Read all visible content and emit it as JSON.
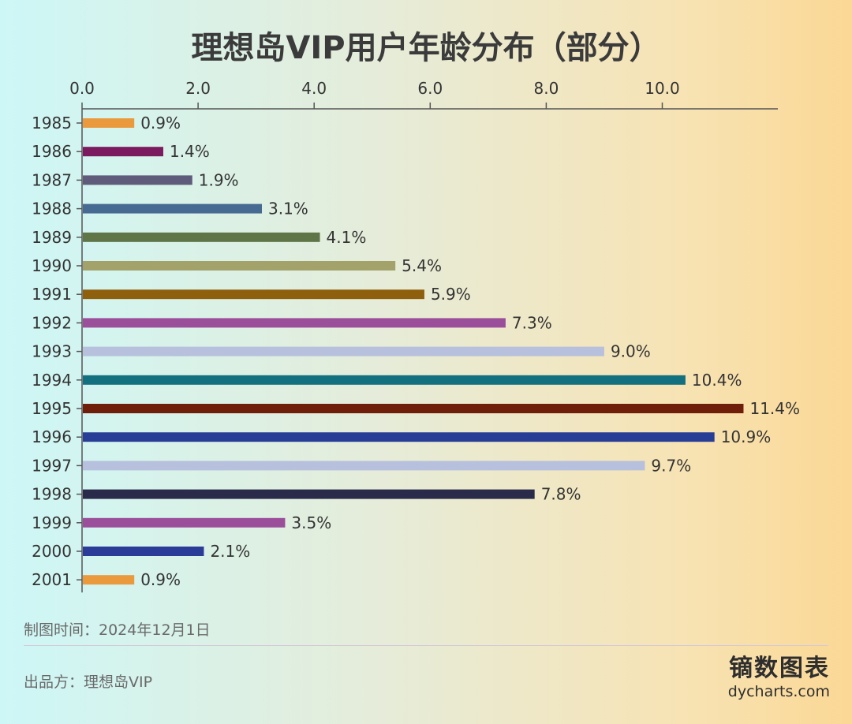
{
  "title": "理想岛VIP用户年龄分布（部分）",
  "chart_data": {
    "type": "bar",
    "orientation": "horizontal",
    "title": "理想岛VIP用户年龄分布（部分）",
    "xlabel": "",
    "ylabel": "",
    "xlim": [
      0,
      12
    ],
    "xticks": [
      0,
      2,
      4,
      6,
      8,
      10
    ],
    "xtick_labels": [
      "0.0",
      "2.0",
      "4.0",
      "6.0",
      "8.0",
      "10.0"
    ],
    "x_axis_position": "top",
    "grid": false,
    "categories": [
      "1985",
      "1986",
      "1987",
      "1988",
      "1989",
      "1990",
      "1991",
      "1992",
      "1993",
      "1994",
      "1995",
      "1996",
      "1997",
      "1998",
      "1999",
      "2000",
      "2001"
    ],
    "values": [
      0.9,
      1.4,
      1.9,
      3.1,
      4.1,
      5.4,
      5.9,
      7.3,
      9.0,
      10.4,
      11.4,
      10.9,
      9.7,
      7.8,
      3.5,
      2.1,
      0.9
    ],
    "value_labels": [
      "0.9%",
      "1.4%",
      "1.9%",
      "3.1%",
      "4.1%",
      "5.4%",
      "5.9%",
      "7.3%",
      "9.0%",
      "10.4%",
      "11.4%",
      "10.9%",
      "9.7%",
      "7.8%",
      "3.5%",
      "2.1%",
      "0.9%"
    ],
    "colors": [
      "#ea9a3c",
      "#7b1a5e",
      "#5f5b7a",
      "#466a91",
      "#5f7547",
      "#a3a26b",
      "#8e5f0d",
      "#9b4e9a",
      "#b7c0dc",
      "#12707f",
      "#6f1e0a",
      "#283e96",
      "#b7c0dc",
      "#2a2b4a",
      "#9b4e9a",
      "#2b3c98",
      "#ea9a3c"
    ]
  },
  "footer": {
    "date_line": "制图时间：2024年12月1日",
    "source_line": "出品方：理想岛VIP"
  },
  "brand": {
    "name": "镝数图表",
    "url": "dycharts.com"
  }
}
